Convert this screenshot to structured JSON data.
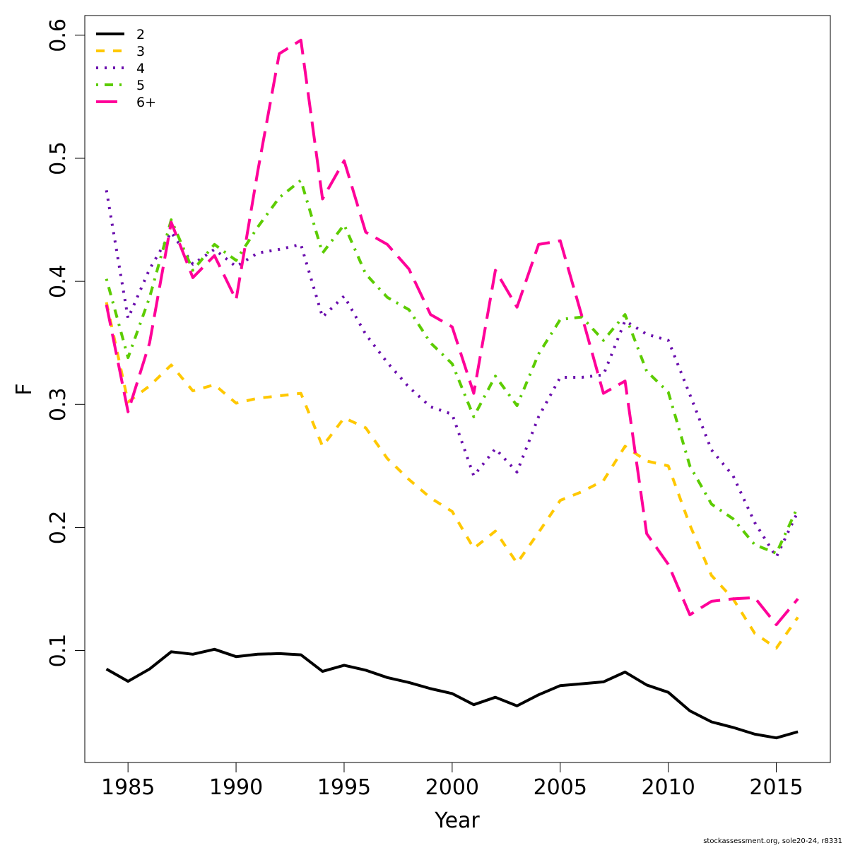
{
  "chart_data": {
    "type": "line",
    "title": "",
    "xlabel": "Year",
    "ylabel": "F",
    "xlim": [
      1983,
      1967.1
    ],
    "xticks": [
      1985,
      1990,
      1995,
      2000,
      2005,
      2010,
      2015
    ],
    "ylim": [
      0.009,
      0.616
    ],
    "yticks": [
      0.1,
      0.2,
      0.3,
      0.4,
      0.5,
      0.6
    ],
    "grid": false,
    "legend": "top-left",
    "x": [
      1984,
      1985,
      1986,
      1987,
      1988,
      1989,
      1990,
      1991,
      1992,
      1993,
      1994,
      1995,
      1996,
      1997,
      1998,
      1999,
      2000,
      2001,
      2002,
      2003,
      2004,
      2005,
      2006,
      2007,
      2008,
      2009,
      2010,
      2011,
      2012,
      2013,
      2014,
      2015,
      2016
    ],
    "series": [
      {
        "name": "2",
        "color": "#000000",
        "dash": "solid",
        "values": [
          0.085,
          0.075,
          0.085,
          0.099,
          0.097,
          0.101,
          0.095,
          0.097,
          0.0975,
          0.0965,
          0.083,
          0.088,
          0.084,
          0.078,
          0.074,
          0.069,
          0.065,
          0.056,
          0.062,
          0.055,
          0.064,
          0.0715,
          0.073,
          0.0745,
          0.0825,
          0.072,
          0.066,
          0.051,
          0.042,
          0.0375,
          0.032,
          0.029,
          0.034
        ]
      },
      {
        "name": "3",
        "color": "#FFC800",
        "dash": "dashed",
        "values": [
          0.383,
          0.302,
          0.315,
          0.332,
          0.311,
          0.316,
          0.301,
          0.305,
          0.307,
          0.309,
          0.266,
          0.289,
          0.281,
          0.256,
          0.239,
          0.224,
          0.213,
          0.183,
          0.197,
          0.171,
          0.196,
          0.222,
          0.229,
          0.238,
          0.266,
          0.254,
          0.25,
          0.202,
          0.161,
          0.142,
          0.114,
          0.102,
          0.127
        ]
      },
      {
        "name": "4",
        "color": "#6A0DAD",
        "dash": "dotted",
        "values": [
          0.474,
          0.37,
          0.41,
          0.44,
          0.414,
          0.426,
          0.412,
          0.423,
          0.426,
          0.43,
          0.371,
          0.388,
          0.357,
          0.334,
          0.314,
          0.298,
          0.292,
          0.242,
          0.264,
          0.245,
          0.29,
          0.322,
          0.322,
          0.324,
          0.368,
          0.357,
          0.352,
          0.308,
          0.263,
          0.242,
          0.204,
          0.176,
          0.213
        ]
      },
      {
        "name": "5",
        "color": "#5CCC00",
        "dash": "dotdash",
        "values": [
          0.402,
          0.338,
          0.387,
          0.45,
          0.409,
          0.43,
          0.417,
          0.444,
          0.468,
          0.482,
          0.423,
          0.446,
          0.406,
          0.387,
          0.377,
          0.35,
          0.333,
          0.29,
          0.323,
          0.299,
          0.341,
          0.369,
          0.371,
          0.352,
          0.373,
          0.327,
          0.31,
          0.25,
          0.219,
          0.207,
          0.186,
          0.179,
          0.217
        ]
      },
      {
        "name": "6+",
        "color": "#FF0099",
        "dash": "longdash",
        "values": [
          0.381,
          0.294,
          0.35,
          0.448,
          0.403,
          0.421,
          0.385,
          0.489,
          0.585,
          0.596,
          0.467,
          0.498,
          0.44,
          0.43,
          0.41,
          0.373,
          0.363,
          0.309,
          0.409,
          0.379,
          0.43,
          0.433,
          0.372,
          0.309,
          0.319,
          0.195,
          0.17,
          0.129,
          0.14,
          0.142,
          0.143,
          0.121,
          0.142
        ]
      }
    ]
  },
  "credit": "stockassessment.org, sole20-24, r8331"
}
